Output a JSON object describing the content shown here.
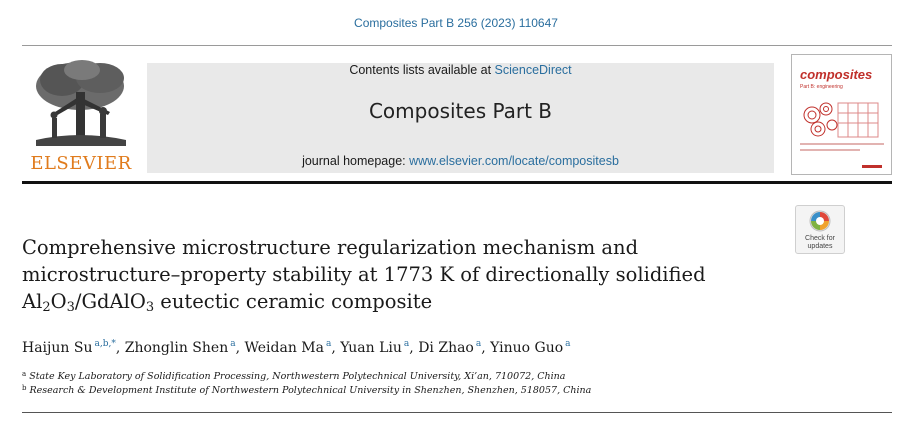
{
  "citation": "Composites Part B 256 (2023) 110647",
  "publisher": {
    "name": "ELSEVIER",
    "logo_icon": "elsevier-tree-icon",
    "brand_color": "#e07b1c"
  },
  "banner": {
    "contents_prefix": "Contents lists available at ",
    "contents_link": "ScienceDirect",
    "journal_title": "Composites Part B",
    "homepage_prefix": "journal homepage: ",
    "homepage_link": "www.elsevier.com/locate/compositesb",
    "background": "#e9e9e9",
    "link_color": "#2a6e9e"
  },
  "cover": {
    "word": "composites",
    "subtitle": "Part B: engineering",
    "accent": "#c0302b"
  },
  "check_updates": {
    "icon": "check-for-updates-icon",
    "line1": "Check for",
    "line2": "updates"
  },
  "article": {
    "title_line1": "Comprehensive microstructure regularization mechanism and",
    "title_line2": "microstructure–property stability at 1773 K of directionally solidified",
    "title_line3": {
      "al": "Al",
      "al_sub": "2",
      "o1": "O",
      "o1_sub": "3",
      "mid": "/GdAlO",
      "o2_sub": "3",
      "rest": " eutectic ceramic composite"
    }
  },
  "authors": [
    {
      "name": "Haijun Su",
      "sup": "a,b,*",
      "sep": ", "
    },
    {
      "name": "Zhonglin Shen",
      "sup": "a",
      "sep": ", "
    },
    {
      "name": "Weidan Ma",
      "sup": "a",
      "sep": ", "
    },
    {
      "name": "Yuan Liu",
      "sup": "a",
      "sep": ", "
    },
    {
      "name": "Di Zhao",
      "sup": "a",
      "sep": ", "
    },
    {
      "name": "Yinuo Guo",
      "sup": "a",
      "sep": ""
    }
  ],
  "affiliations": [
    {
      "label": "a",
      "text": "State Key Laboratory of Solidification Processing, Northwestern Polytechnical University, Xi’an, 710072, China"
    },
    {
      "label": "b",
      "text": "Research & Development Institute of Northwestern Polytechnical University in Shenzhen, Shenzhen, 518057, China"
    }
  ]
}
